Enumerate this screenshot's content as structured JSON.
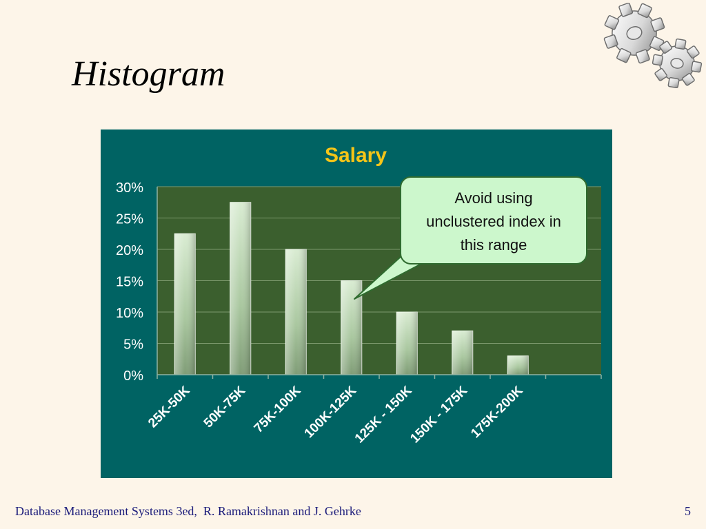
{
  "slide": {
    "title": "Histogram",
    "footer_text": "Database Management Systems 3ed,  R. Ramakrishnan and J. Gehrke",
    "page_number": "5"
  },
  "decoration": {
    "icon": "gears-icon"
  },
  "callout": {
    "lines": [
      "Avoid using",
      "unclustered index in",
      "this range"
    ]
  },
  "colors": {
    "slide_background": "#fdf5e9",
    "chart_background": "#006363",
    "plot_area": "#3b5f2e",
    "title_color": "#f5c518",
    "bar_color": "#b5d3ad",
    "callout_fill": "#ccf7cc"
  },
  "chart_data": {
    "type": "bar",
    "title": "Salary",
    "xlabel": "",
    "ylabel": "",
    "categories": [
      "25K-50K",
      "50K-75K",
      "75K-100K",
      "100K-125K",
      "125K - 150K",
      "150K - 175K",
      "175K-200K",
      ""
    ],
    "values": [
      22.5,
      27.5,
      20,
      15,
      10,
      7,
      3,
      null
    ],
    "ylim": [
      0,
      30
    ],
    "yticks": [
      "0%",
      "5%",
      "10%",
      "15%",
      "20%",
      "25%",
      "30%"
    ],
    "grid": true,
    "legend": "none"
  }
}
